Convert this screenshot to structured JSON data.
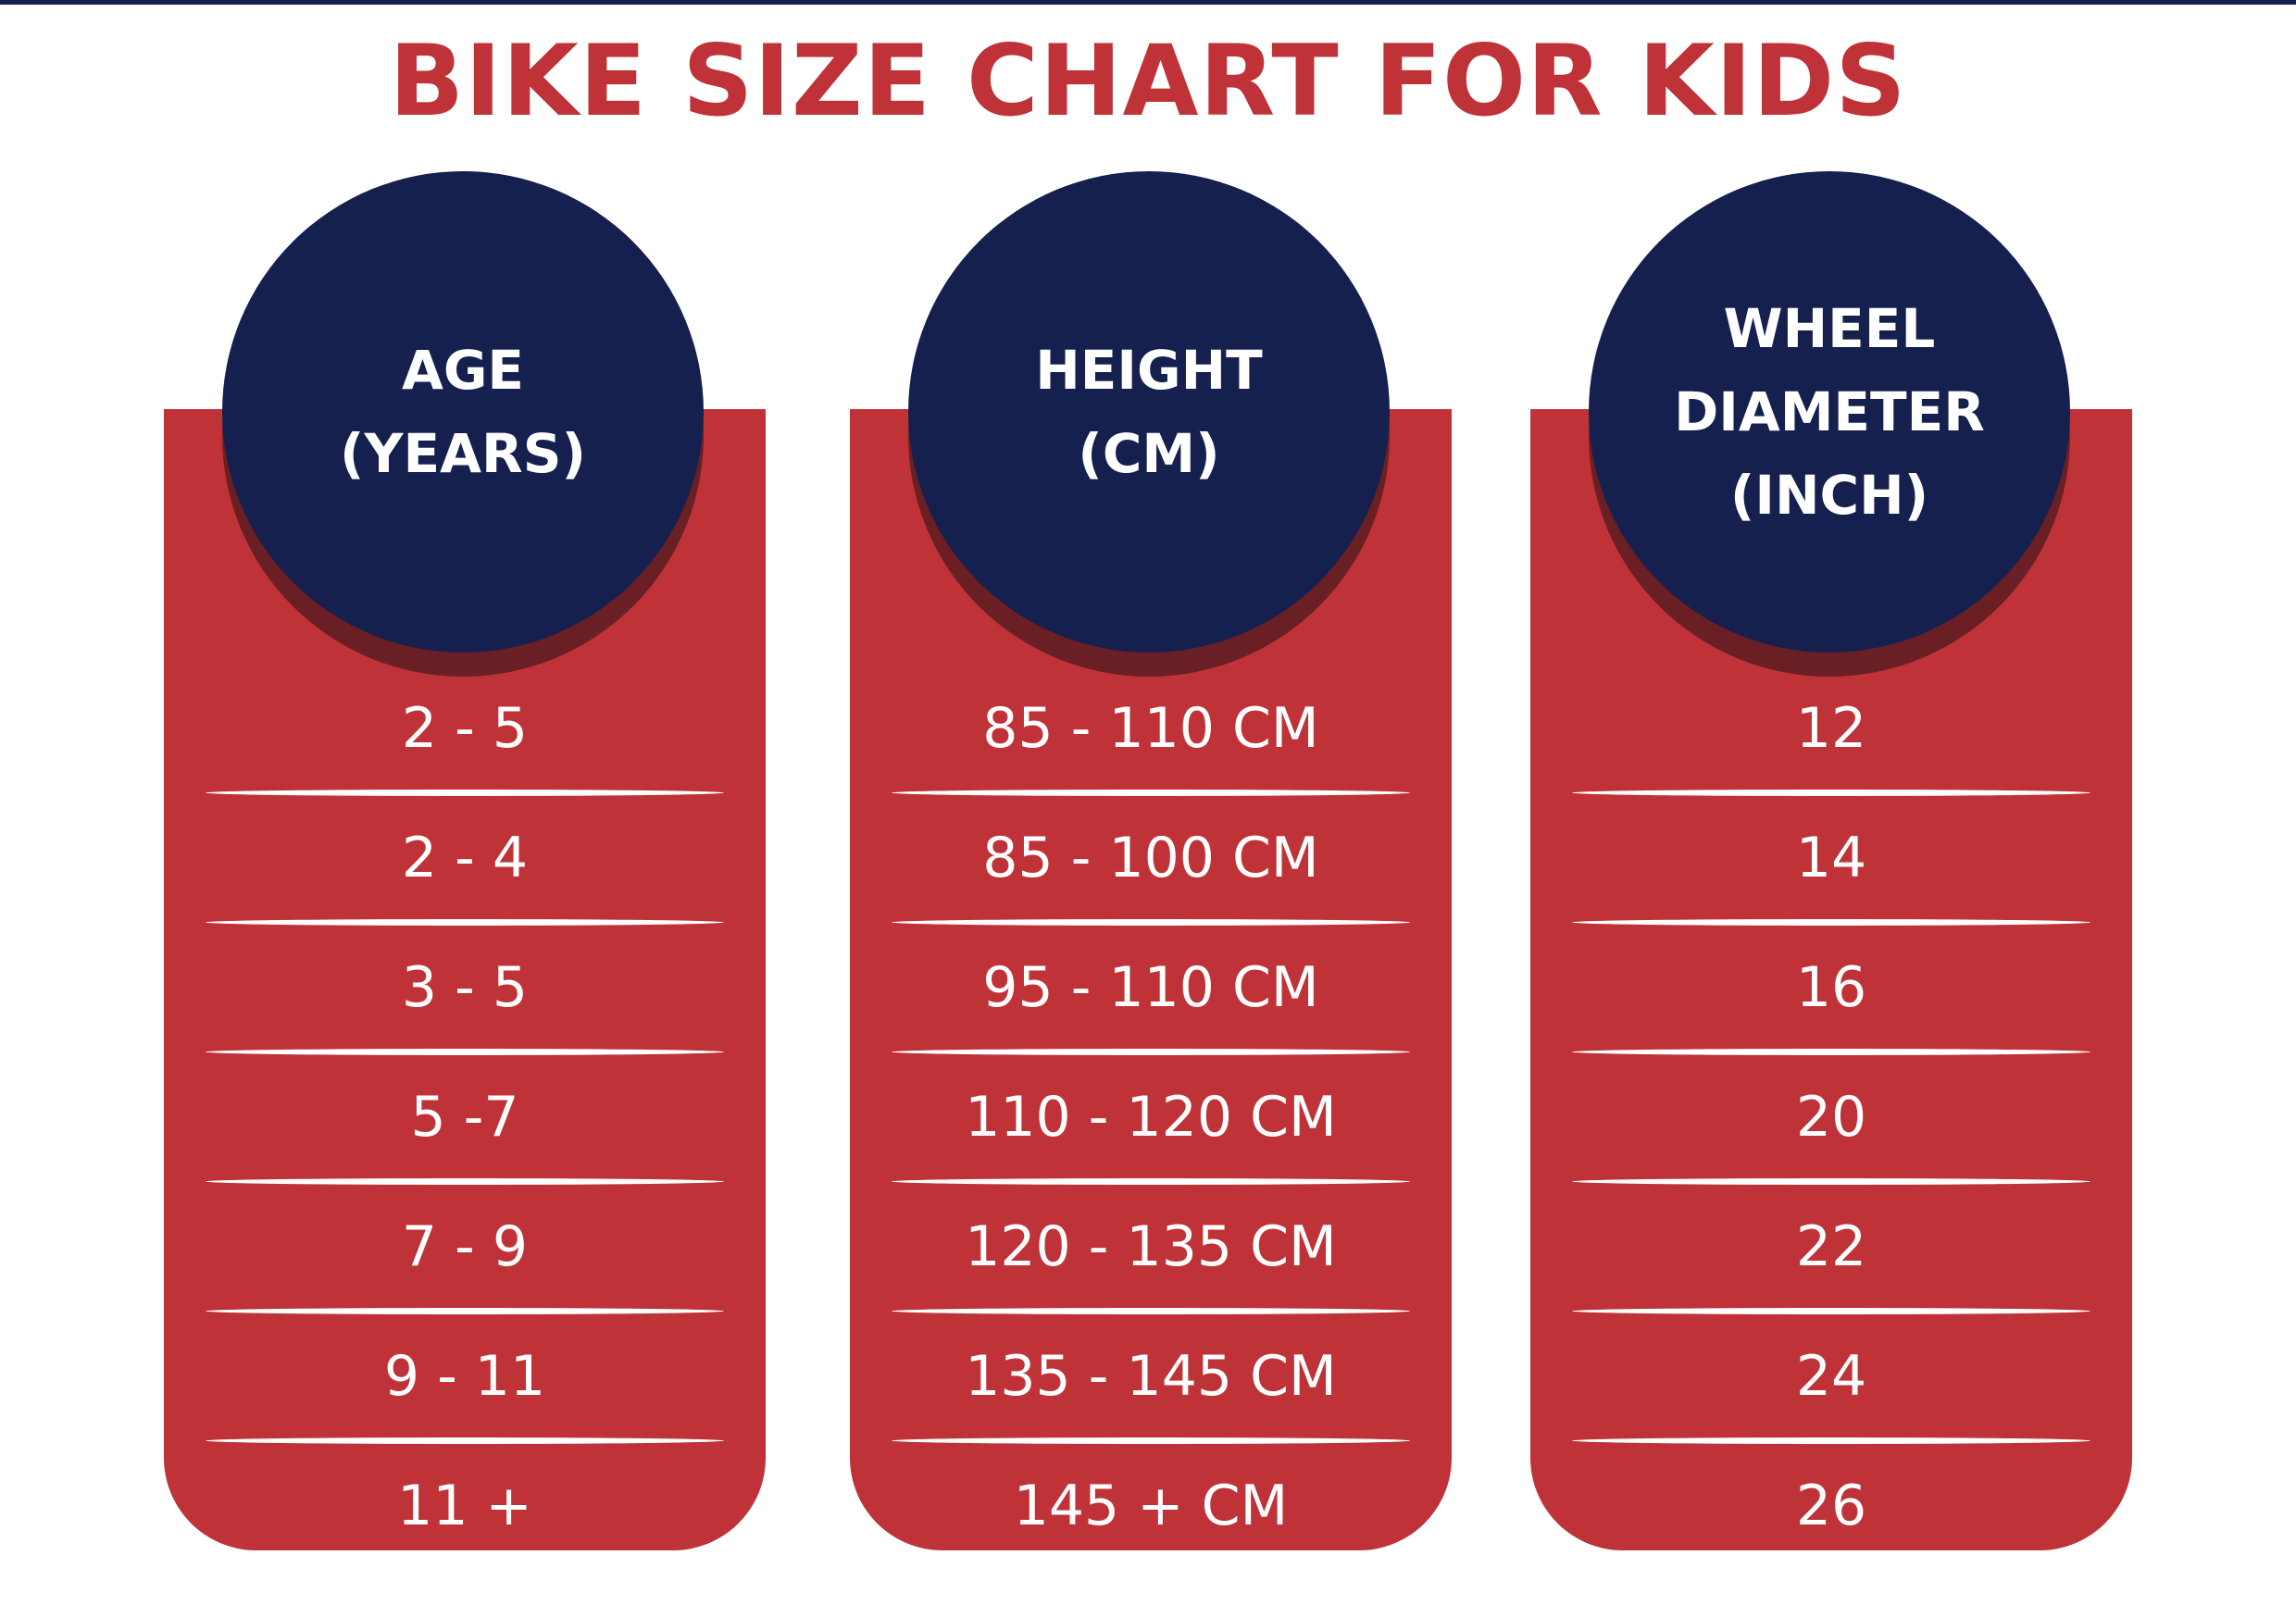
{
  "title": "BIKE SIZE CHART FOR KIDS",
  "colors": {
    "title": "#bf3338",
    "card": "#bf3338",
    "circle": "#15204e",
    "circle_shadow": "#6a1f24",
    "text_on_color": "#ffffff"
  },
  "columns": [
    {
      "header_lines": [
        "AGE",
        "(YEARS)"
      ],
      "rows": [
        "2 - 5",
        "2 - 4",
        "3 - 5",
        "5 -7",
        "7 - 9",
        "9 - 11",
        "11 +"
      ]
    },
    {
      "header_lines": [
        "HEIGHT",
        "(CM)"
      ],
      "rows": [
        "85 - 110 CM",
        "85 - 100 CM",
        "95 - 110 CM",
        "110 - 120 CM",
        "120 - 135 CM",
        "135 - 145 CM",
        "145 + CM"
      ]
    },
    {
      "header_lines": [
        "WHEEL",
        "DIAMETER",
        "(INCH)"
      ],
      "rows": [
        "12",
        "14",
        "16",
        "20",
        "22",
        "24",
        "26"
      ]
    }
  ],
  "chart_data": {
    "type": "table",
    "title": "BIKE SIZE CHART FOR KIDS",
    "columns": [
      "AGE (YEARS)",
      "HEIGHT (CM)",
      "WHEEL DIAMETER (INCH)"
    ],
    "rows": [
      [
        "2 - 5",
        "85 - 110 CM",
        "12"
      ],
      [
        "2 - 4",
        "85 - 100 CM",
        "14"
      ],
      [
        "3 - 5",
        "95 - 110 CM",
        "16"
      ],
      [
        "5 -7",
        "110 - 120 CM",
        "20"
      ],
      [
        "7 - 9",
        "120 - 135 CM",
        "22"
      ],
      [
        "9 - 11",
        "135 - 145 CM",
        "24"
      ],
      [
        "11 +",
        "145 + CM",
        "26"
      ]
    ]
  }
}
